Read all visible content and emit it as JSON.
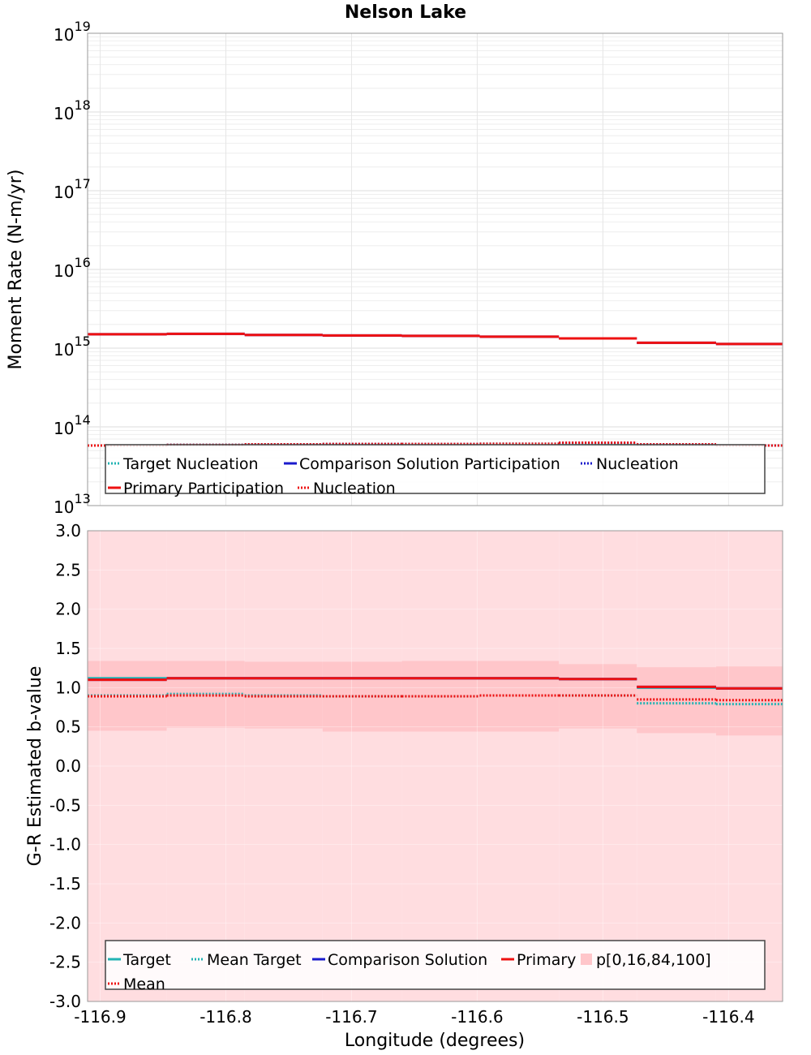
{
  "chart_data": [
    {
      "type": "line",
      "title": "Nelson Lake",
      "ylabel": "Moment Rate (N-m/yr)",
      "xlabel": "",
      "yscale": "log",
      "ylim": [
        10000000000000.0,
        1e+19
      ],
      "xlim": [
        -116.91,
        -116.357
      ],
      "ytick_base": "10",
      "yticks": [
        13,
        14,
        15,
        16,
        17,
        18,
        19
      ],
      "grid": true,
      "bin_edges": [
        -116.91,
        -116.847,
        -116.785,
        -116.723,
        -116.66,
        -116.598,
        -116.535,
        -116.473,
        -116.41,
        -116.357
      ],
      "series": [
        {
          "name": "Target Nucleation",
          "color": "#22b3b3",
          "style": "dotted",
          "width": 3,
          "values": [
            58000000000000.0,
            59000000000000.0,
            60000000000000.0,
            60000000000000.0,
            60000000000000.0,
            61000000000000.0,
            60000000000000.0,
            59000000000000.0,
            58000000000000.0
          ]
        },
        {
          "name": "Comparison Solution Participation",
          "color": "#1a1acc",
          "style": "solid",
          "width": 3,
          "values": [
            1500000000000000.0,
            1520000000000000.0,
            1470000000000000.0,
            1450000000000000.0,
            1430000000000000.0,
            1400000000000000.0,
            1330000000000000.0,
            1170000000000000.0,
            1130000000000000.0
          ]
        },
        {
          "name": "Nucleation",
          "color": "#1a1acc",
          "style": "dotted",
          "width": 3,
          "values": [
            58000000000000.0,
            59000000000000.0,
            60000000000000.0,
            60500000000000.0,
            60500000000000.0,
            61000000000000.0,
            63000000000000.0,
            60000000000000.0,
            58000000000000.0
          ]
        },
        {
          "name": "Primary Participation",
          "color": "#ee1111",
          "style": "solid",
          "width": 3,
          "values": [
            1500000000000000.0,
            1520000000000000.0,
            1470000000000000.0,
            1450000000000000.0,
            1430000000000000.0,
            1400000000000000.0,
            1330000000000000.0,
            1170000000000000.0,
            1130000000000000.0
          ]
        },
        {
          "name": "Nucleation",
          "color": "#ee1111",
          "style": "dotted",
          "width": 3,
          "values": [
            58000000000000.0,
            59000000000000.0,
            60000000000000.0,
            60500000000000.0,
            60500000000000.0,
            61000000000000.0,
            63000000000000.0,
            60000000000000.0,
            58000000000000.0
          ]
        }
      ],
      "legend": {
        "placement": "bottom",
        "entries": [
          {
            "label": "Target Nucleation",
            "color": "#22b3b3",
            "style": "dotted"
          },
          {
            "label": "Comparison Solution Participation",
            "color": "#1a1acc",
            "style": "solid"
          },
          {
            "label": "Nucleation",
            "color": "#1a1acc",
            "style": "dotted"
          },
          {
            "label": "Primary Participation",
            "color": "#ee1111",
            "style": "solid"
          },
          {
            "label": "Nucleation",
            "color": "#ee1111",
            "style": "dotted"
          }
        ]
      }
    },
    {
      "type": "line",
      "title": "",
      "ylabel": "G-R Estimated b-value",
      "xlabel": "Longitude (degrees)",
      "ylim": [
        -3.0,
        3.0
      ],
      "xlim": [
        -116.91,
        -116.357
      ],
      "yticks": [
        "3.0",
        "2.5",
        "2.0",
        "1.5",
        "1.0",
        "0.5",
        "0.0",
        "-0.5",
        "-1.0",
        "-1.5",
        "-2.0",
        "-2.5",
        "-3.0"
      ],
      "xticks": [
        "-116.9",
        "-116.8",
        "-116.7",
        "-116.6",
        "-116.5",
        "-116.4"
      ],
      "grid": true,
      "bin_edges": [
        -116.91,
        -116.847,
        -116.785,
        -116.723,
        -116.66,
        -116.598,
        -116.535,
        -116.473,
        -116.41,
        -116.357
      ],
      "bands": {
        "name": "p[0,16,84,100]",
        "outer_color": "#ffdde0",
        "inner_color": "#ffc6ca",
        "p0": [
          -3.0,
          -3.0,
          -3.0,
          -3.0,
          -3.0,
          -3.0,
          -3.0,
          -3.0,
          -3.0
        ],
        "p100": [
          3.0,
          3.0,
          3.0,
          3.0,
          3.0,
          3.0,
          3.0,
          3.0,
          3.0
        ],
        "p16": [
          0.45,
          0.49,
          0.48,
          0.44,
          0.44,
          0.44,
          0.48,
          0.42,
          0.39
        ],
        "p84": [
          1.34,
          1.34,
          1.33,
          1.33,
          1.34,
          1.34,
          1.3,
          1.26,
          1.27
        ]
      },
      "series": [
        {
          "name": "Target",
          "color": "#22b3b3",
          "style": "solid",
          "width": 3,
          "values": [
            1.12,
            1.12,
            1.12,
            1.12,
            1.12,
            1.12,
            1.11,
            1.0,
            0.99
          ]
        },
        {
          "name": "Mean Target",
          "color": "#22b3b3",
          "style": "dotted",
          "width": 3,
          "values": [
            0.9,
            0.92,
            0.9,
            0.89,
            0.89,
            0.9,
            0.9,
            0.8,
            0.79
          ]
        },
        {
          "name": "Comparison Solution",
          "color": "#1a1acc",
          "style": "solid",
          "width": 3,
          "values": [
            1.1,
            1.12,
            1.12,
            1.12,
            1.12,
            1.12,
            1.11,
            1.01,
            0.99
          ]
        },
        {
          "name": "Primary",
          "color": "#ee1111",
          "style": "solid",
          "width": 3,
          "values": [
            1.1,
            1.12,
            1.12,
            1.12,
            1.12,
            1.12,
            1.11,
            1.01,
            0.99
          ]
        },
        {
          "name": "Mean",
          "color": "#ee1111",
          "style": "dotted",
          "width": 3,
          "values": [
            0.89,
            0.9,
            0.89,
            0.89,
            0.89,
            0.9,
            0.9,
            0.85,
            0.84
          ]
        }
      ],
      "legend": {
        "placement": "bottom",
        "entries": [
          {
            "label": "Target",
            "color": "#22b3b3",
            "style": "solid"
          },
          {
            "label": "Mean Target",
            "color": "#22b3b3",
            "style": "dotted"
          },
          {
            "label": "Comparison Solution",
            "color": "#1a1acc",
            "style": "solid"
          },
          {
            "label": "Primary",
            "color": "#ee1111",
            "style": "solid"
          },
          {
            "label": "p[0,16,84,100]",
            "color": "#ffc6ca",
            "style": "box"
          },
          {
            "label": "Mean",
            "color": "#ee1111",
            "style": "dotted"
          }
        ]
      }
    }
  ]
}
